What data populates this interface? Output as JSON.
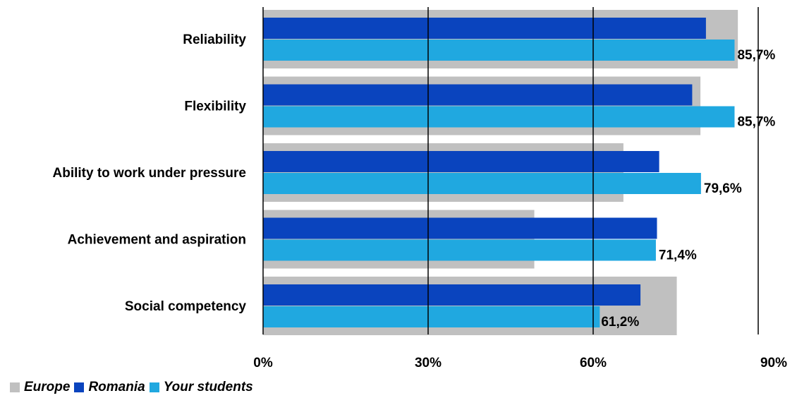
{
  "chart_data": {
    "type": "bar",
    "orientation": "horizontal",
    "categories": [
      "Reliability",
      "Flexibility",
      "Ability to work under pressure",
      "Achievement and aspiration",
      "Social competency"
    ],
    "series": [
      {
        "name": "Europe",
        "color": "#c0c0c0",
        "values": [
          86.3,
          79.5,
          65.5,
          49.3,
          75.2
        ]
      },
      {
        "name": "Romania",
        "color": "#0a44be",
        "values": [
          80.5,
          78.0,
          72.0,
          71.6,
          68.6
        ]
      },
      {
        "name": "Your students",
        "color": "#20a8e0",
        "values": [
          85.7,
          85.7,
          79.6,
          71.4,
          61.2
        ]
      }
    ],
    "data_labels": [
      "85,7%",
      "85,7%",
      "79,6%",
      "71,4%",
      "61,2%"
    ],
    "x_ticks": [
      {
        "value": 0,
        "label": "0%"
      },
      {
        "value": 30,
        "label": "30%"
      },
      {
        "value": 60,
        "label": "60%"
      },
      {
        "value": 90,
        "label": "90%"
      }
    ],
    "xlim": [
      0,
      90
    ],
    "grid": "vertical",
    "legend_position": "bottom-left"
  },
  "legend": {
    "items": [
      {
        "label": "Europe",
        "color": "#c0c0c0"
      },
      {
        "label": "Romania",
        "color": "#0a44be"
      },
      {
        "label": "Your students",
        "color": "#20a8e0"
      }
    ]
  }
}
